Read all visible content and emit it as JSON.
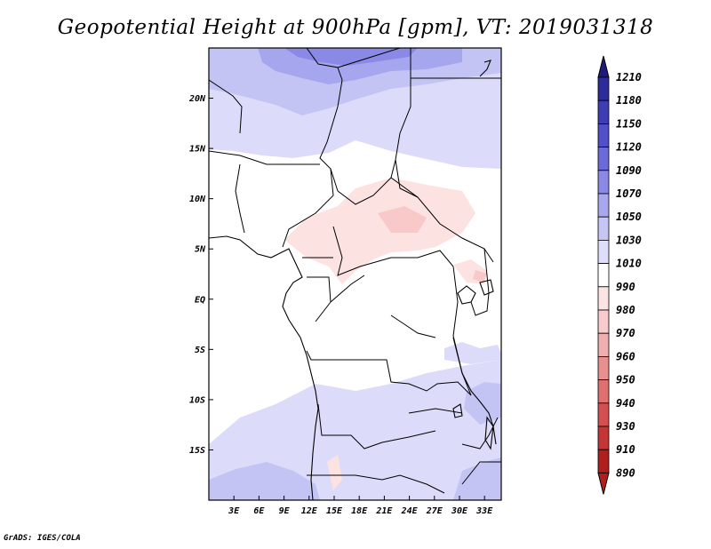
{
  "title": "Geopotential Height at 900hPa [gpm], VT: 2019031318",
  "footer": "GrADS: IGES/COLA",
  "map": {
    "lon_range": [
      0,
      35
    ],
    "lat_range": [
      -20,
      25
    ],
    "lat_labels": [
      {
        "lat": 20,
        "label": "20N"
      },
      {
        "lat": 15,
        "label": "15N"
      },
      {
        "lat": 10,
        "label": "10N"
      },
      {
        "lat": 5,
        "label": "5N"
      },
      {
        "lat": 0,
        "label": "EQ"
      },
      {
        "lat": -5,
        "label": "5S"
      },
      {
        "lat": -10,
        "label": "10S"
      },
      {
        "lat": -15,
        "label": "15S"
      }
    ],
    "lon_labels": [
      {
        "lon": 3,
        "label": "3E"
      },
      {
        "lon": 6,
        "label": "6E"
      },
      {
        "lon": 9,
        "label": "9E"
      },
      {
        "lon": 12,
        "label": "12E"
      },
      {
        "lon": 15,
        "label": "15E"
      },
      {
        "lon": 18,
        "label": "18E"
      },
      {
        "lon": 21,
        "label": "21E"
      },
      {
        "lon": 24,
        "label": "24E"
      },
      {
        "lon": 27,
        "label": "27E"
      },
      {
        "lon": 30,
        "label": "30E"
      },
      {
        "lon": 33,
        "label": "33E"
      }
    ]
  },
  "colorbar": {
    "levels": [
      "1210",
      "1180",
      "1150",
      "1120",
      "1090",
      "1070",
      "1050",
      "1030",
      "1010",
      "990",
      "980",
      "970",
      "960",
      "950",
      "940",
      "930",
      "910",
      "890"
    ],
    "colors": [
      "#1e1a7e",
      "#2c2c9a",
      "#3d3db4",
      "#5050c8",
      "#6a6ad8",
      "#8a8ae6",
      "#a8a8ee",
      "#c6c6f4",
      "#dedefa",
      "#ffffff",
      "#fce4e4",
      "#f8cccc",
      "#f0aeae",
      "#e89090",
      "#e07070",
      "#d45050",
      "#c43636",
      "#b01e1e"
    ]
  }
}
